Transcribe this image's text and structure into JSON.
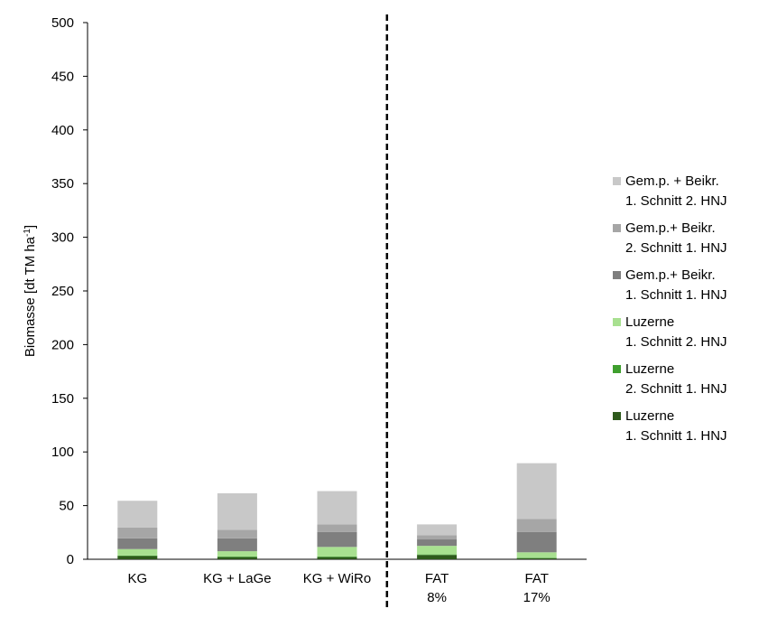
{
  "chart_data": {
    "type": "bar",
    "stacked": true,
    "title": "",
    "xlabel": "",
    "ylabel": "Biomasse [dt TM ha",
    "ylabel_sup": "-1",
    "ylabel_end": "]",
    "ylim": [
      0,
      500
    ],
    "yticks": [
      0,
      50,
      100,
      150,
      200,
      250,
      300,
      350,
      400,
      450,
      500
    ],
    "grid": false,
    "legend_position": "right",
    "divider_after_category": 2,
    "categories": [
      {
        "line1": "KG",
        "line2": ""
      },
      {
        "line1": "KG + LaGe",
        "line2": ""
      },
      {
        "line1": "KG + WiRo",
        "line2": ""
      },
      {
        "line1": "FAT",
        "line2": "8%"
      },
      {
        "line1": "FAT",
        "line2": "17%"
      }
    ],
    "series": [
      {
        "name_line1": "Luzerne",
        "name_line2": "1. Schnitt 1. HNJ",
        "color": "#2e5a1c",
        "values": [
          3,
          2,
          2,
          4,
          1
        ]
      },
      {
        "name_line1": "Luzerne",
        "name_line2": "2. Schnitt 1. HNJ",
        "color": "#3f9f2e",
        "values": [
          0.5,
          0.5,
          0.5,
          0.5,
          0.5
        ]
      },
      {
        "name_line1": "Luzerne",
        "name_line2": "1. Schnitt 2. HNJ",
        "color": "#a8e090",
        "values": [
          6,
          5,
          9,
          8,
          5
        ]
      },
      {
        "name_line1": "Gem.p.+ Beikr.",
        "name_line2": "1. Schnitt 1. HNJ",
        "color": "#7f7f7f",
        "values": [
          10,
          12,
          14,
          6,
          19
        ]
      },
      {
        "name_line1": "Gem.p.+ Beikr.",
        "name_line2": "2. Schnitt 1. HNJ",
        "color": "#a6a6a6",
        "values": [
          10,
          8,
          7,
          4,
          12
        ]
      },
      {
        "name_line1": "Gem.p. + Beikr.",
        "name_line2": "1. Schnitt 2. HNJ",
        "color": "#c8c8c8",
        "values": [
          25,
          34,
          31,
          10,
          52
        ]
      }
    ]
  }
}
